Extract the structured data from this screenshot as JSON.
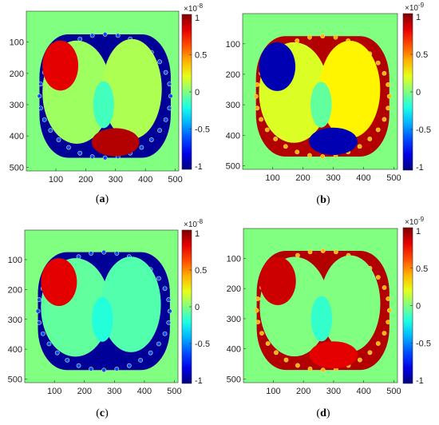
{
  "chart_data": [
    {
      "type": "heatmap",
      "panel_label": "a",
      "exponent": "-8",
      "x_ticks": [
        100,
        200,
        300,
        400,
        500
      ],
      "y_ticks": [
        100,
        200,
        300,
        400,
        500
      ],
      "xlim": [
        1,
        512
      ],
      "ylim": [
        1,
        512
      ],
      "colorbar": {
        "range": [
          -1,
          1
        ],
        "ticks": [
          "1",
          "0.5",
          "0",
          "-0.5",
          "-1"
        ],
        "scale_prefix": "×10",
        "colormap": "jet"
      },
      "ring_sign": "negative",
      "regions": [
        {
          "name": "upper-left blob",
          "sign": "positive",
          "value": 0.8
        },
        {
          "name": "lower-center blob",
          "sign": "positive",
          "value": 0.9
        },
        {
          "name": "interior",
          "sign": "neutral",
          "value": 0.1
        }
      ]
    },
    {
      "type": "heatmap",
      "panel_label": "b",
      "exponent": "-9",
      "x_ticks": [
        100,
        200,
        300,
        400,
        500
      ],
      "y_ticks": [
        100,
        200,
        300,
        400,
        500
      ],
      "xlim": [
        1,
        512
      ],
      "ylim": [
        1,
        512
      ],
      "colorbar": {
        "range": [
          -1,
          1
        ],
        "ticks": [
          "1",
          "0.5",
          "0",
          "-0.5",
          "-1"
        ],
        "scale_prefix": "×10",
        "colormap": "jet"
      },
      "ring_sign": "positive",
      "regions": [
        {
          "name": "upper-left blob",
          "sign": "negative",
          "value": -0.9
        },
        {
          "name": "lower-center blob",
          "sign": "negative",
          "value": -0.9
        },
        {
          "name": "interior",
          "sign": "mixed",
          "value": 0.3
        }
      ]
    },
    {
      "type": "heatmap",
      "panel_label": "c",
      "exponent": "-8",
      "x_ticks": [
        100,
        200,
        300,
        400,
        500
      ],
      "y_ticks": [
        100,
        200,
        300,
        400,
        500
      ],
      "xlim": [
        1,
        512
      ],
      "ylim": [
        1,
        512
      ],
      "colorbar": {
        "range": [
          -1,
          1
        ],
        "ticks": [
          "1",
          "0.5",
          "0",
          "-0.5",
          "-1"
        ],
        "scale_prefix": "×10",
        "colormap": "jet"
      },
      "ring_sign": "negative",
      "regions": [
        {
          "name": "upper-left blob",
          "sign": "positive",
          "value": 0.8
        },
        {
          "name": "interior",
          "sign": "neutral",
          "value": -0.1
        }
      ]
    },
    {
      "type": "heatmap",
      "panel_label": "d",
      "exponent": "-9",
      "x_ticks": [
        100,
        200,
        300,
        400,
        500
      ],
      "y_ticks": [
        100,
        200,
        300,
        400,
        500
      ],
      "xlim": [
        1,
        512
      ],
      "ylim": [
        1,
        512
      ],
      "colorbar": {
        "range": [
          -1,
          1
        ],
        "ticks": [
          "1",
          "0.5",
          "0",
          "-0.5",
          "-1"
        ],
        "scale_prefix": "×10",
        "colormap": "jet"
      },
      "ring_sign": "positive",
      "regions": [
        {
          "name": "upper-left blob",
          "sign": "positive",
          "value": 0.85
        },
        {
          "name": "lower-center blob",
          "sign": "positive",
          "value": 0.8
        },
        {
          "name": "interior",
          "sign": "mixed",
          "value": 0.0
        }
      ]
    }
  ]
}
